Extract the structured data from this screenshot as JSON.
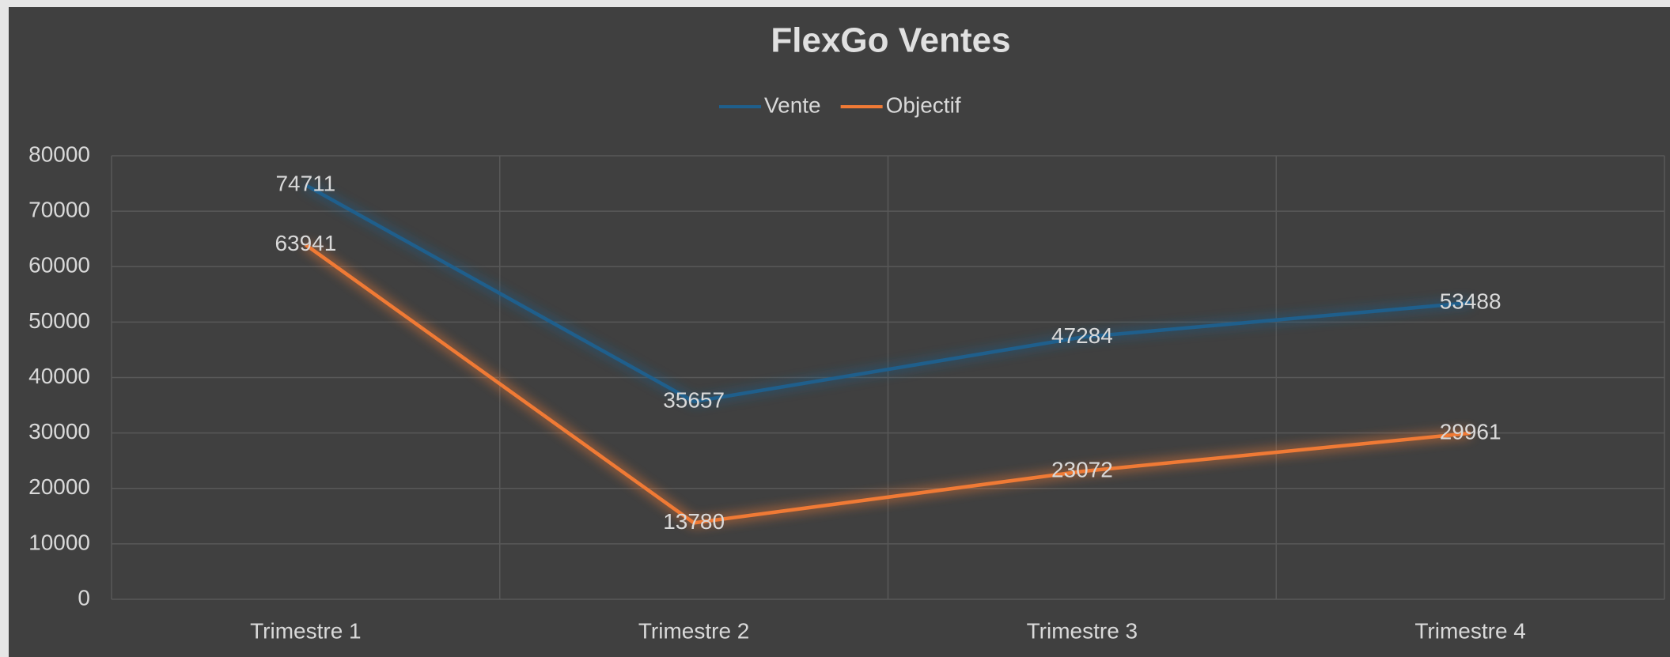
{
  "chart_data": {
    "type": "line",
    "title": "FlexGo Ventes",
    "categories": [
      "Trimestre 1",
      "Trimestre 2",
      "Trimestre 3",
      "Trimestre 4"
    ],
    "series": [
      {
        "name": "Vente",
        "color": "#1f5f8c",
        "values": [
          74711,
          35657,
          47284,
          53488
        ]
      },
      {
        "name": "Objectif",
        "color": "#f07a35",
        "values": [
          63941,
          13780,
          23072,
          29961
        ]
      }
    ],
    "ylim": [
      0,
      80000
    ],
    "yticks": [
      0,
      10000,
      20000,
      30000,
      40000,
      50000,
      60000,
      70000,
      80000
    ],
    "grid": true,
    "legend": "top"
  }
}
